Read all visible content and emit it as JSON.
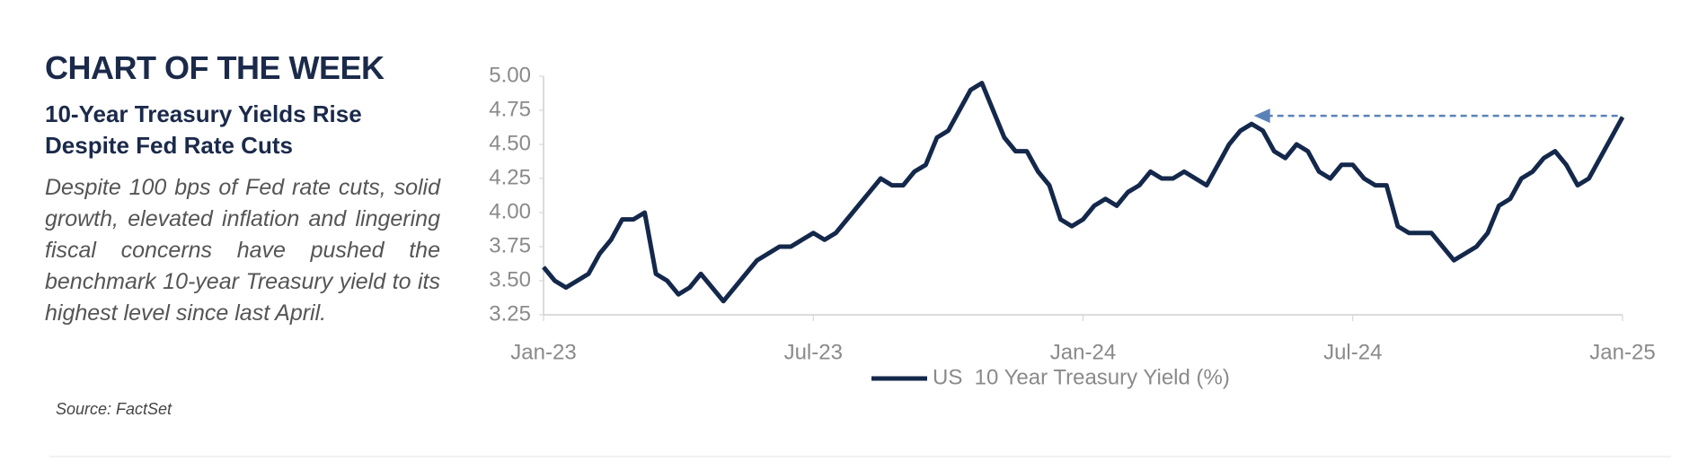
{
  "header": {
    "title": "CHART OF THE WEEK",
    "subtitle": [
      "10-Year Treasury Yields Rise",
      "Despite Fed Rate Cuts"
    ],
    "body": "Despite 100 bps of Fed rate cuts, solid growth, elevated inflation and lingering fiscal concerns have pushed the benchmark 10-year Treasury yield to its highest level since last April.",
    "source": "Source: FactSet"
  },
  "chart_data": {
    "type": "line",
    "x": [
      0,
      0.25,
      0.5,
      0.75,
      1,
      1.25,
      1.5,
      1.75,
      2,
      2.25,
      2.5,
      2.75,
      3,
      3.25,
      3.5,
      3.75,
      4,
      4.25,
      4.5,
      4.75,
      5,
      5.25,
      5.5,
      5.75,
      6,
      6.25,
      6.5,
      6.75,
      7,
      7.25,
      7.5,
      7.75,
      8,
      8.25,
      8.5,
      8.75,
      9,
      9.25,
      9.5,
      9.75,
      10,
      10.25,
      10.5,
      10.75,
      11,
      11.25,
      11.5,
      11.75,
      12,
      12.25,
      12.5,
      12.75,
      13,
      13.25,
      13.5,
      13.75,
      14,
      14.25,
      14.5,
      14.75,
      15,
      15.25,
      15.5,
      15.75,
      16,
      16.25,
      16.5,
      16.75,
      17,
      17.25,
      17.5,
      17.75,
      18,
      18.25,
      18.5,
      18.75,
      19,
      19.25,
      19.5,
      19.75,
      20,
      20.25,
      20.5,
      20.75,
      21,
      21.25,
      21.5,
      21.75,
      22,
      22.25,
      22.5,
      22.75,
      23,
      23.25,
      23.5,
      23.75,
      24
    ],
    "series": [
      {
        "name": "US  10 Year Treasury Yield (%)",
        "color": "#14284b",
        "values": [
          3.6,
          3.5,
          3.45,
          3.5,
          3.55,
          3.7,
          3.8,
          3.95,
          3.95,
          4.0,
          3.55,
          3.5,
          3.4,
          3.45,
          3.55,
          3.45,
          3.35,
          3.45,
          3.55,
          3.65,
          3.7,
          3.75,
          3.75,
          3.8,
          3.85,
          3.8,
          3.85,
          3.95,
          4.05,
          4.15,
          4.25,
          4.2,
          4.2,
          4.3,
          4.35,
          4.55,
          4.6,
          4.75,
          4.9,
          4.95,
          4.75,
          4.55,
          4.45,
          4.45,
          4.3,
          4.2,
          3.95,
          3.9,
          3.95,
          4.05,
          4.1,
          4.05,
          4.15,
          4.2,
          4.3,
          4.25,
          4.25,
          4.3,
          4.25,
          4.2,
          4.35,
          4.5,
          4.6,
          4.65,
          4.6,
          4.45,
          4.4,
          4.5,
          4.45,
          4.3,
          4.25,
          4.35,
          4.35,
          4.25,
          4.2,
          4.2,
          3.9,
          3.85,
          3.85,
          3.85,
          3.75,
          3.65,
          3.7,
          3.75,
          3.85,
          4.05,
          4.1,
          4.25,
          4.3,
          4.4,
          4.45,
          4.35,
          4.2,
          4.25,
          4.4,
          4.55,
          4.7
        ]
      }
    ],
    "xlim": [
      0,
      24
    ],
    "xticks": [
      {
        "value": 0,
        "label": "Jan-23"
      },
      {
        "value": 6,
        "label": "Jul-23"
      },
      {
        "value": 12,
        "label": "Jan-24"
      },
      {
        "value": 18,
        "label": "Jul-24"
      },
      {
        "value": 24,
        "label": "Jan-25"
      }
    ],
    "ylim": [
      3.25,
      5
    ],
    "yticks": [
      {
        "value": 3.25,
        "label": "3.25"
      },
      {
        "value": 3.5,
        "label": "3.50"
      },
      {
        "value": 3.75,
        "label": "3.75"
      },
      {
        "value": 4,
        "label": "4.00"
      },
      {
        "value": 4.25,
        "label": "4.25"
      },
      {
        "value": 4.5,
        "label": "4.50"
      },
      {
        "value": 4.75,
        "label": "4.75"
      },
      {
        "value": 5,
        "label": "5.00"
      }
    ],
    "annotations": [
      {
        "type": "arrow",
        "x_start": 15.8,
        "x_end": 24,
        "y": 4.71,
        "color": "#5a82b8"
      }
    ]
  }
}
